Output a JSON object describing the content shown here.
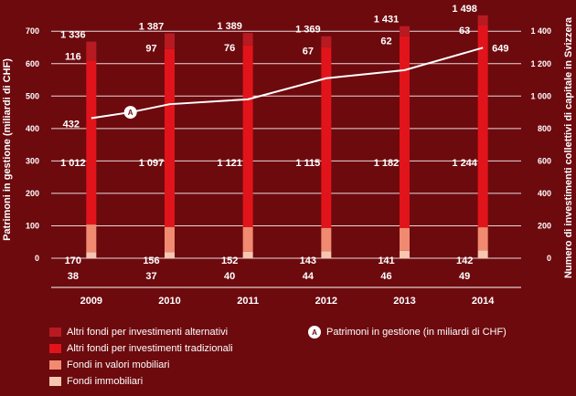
{
  "chart_data": {
    "type": "bar",
    "stacked": true,
    "categories": [
      "2009",
      "2010",
      "2011",
      "2012",
      "2013",
      "2014"
    ],
    "series": [
      {
        "name": "Fondi immobiliari",
        "key": "fondi_immobiliari",
        "color": "#f7c6b0",
        "values": [
          38,
          37,
          40,
          44,
          46,
          49
        ]
      },
      {
        "name": "Fondi in valori mobiliari",
        "key": "fondi_valori_mobiliari",
        "color": "#f08a70",
        "values": [
          170,
          156,
          152,
          143,
          141,
          142
        ]
      },
      {
        "name": "Altri fondi per investimenti tradizionali",
        "key": "altri_tradizionali",
        "color": "#e2141b",
        "values": [
          1012,
          1097,
          1121,
          1115,
          1182,
          1244
        ]
      },
      {
        "name": "Altri fondi per investimenti alternativi",
        "key": "altri_alternativi",
        "color": "#b81a22",
        "values": [
          116,
          97,
          76,
          67,
          62,
          63
        ]
      }
    ],
    "totals": [
      1336,
      1387,
      1389,
      1369,
      1431,
      1498
    ],
    "total_labels": [
      "1 336",
      "1 387",
      "1 389",
      "1 369",
      "1 431",
      "1 498"
    ],
    "segment_labels": {
      "fondi_immobiliari": [
        "38",
        "37",
        "40",
        "44",
        "46",
        "49"
      ],
      "fondi_valori_mobiliari": [
        "170",
        "156",
        "152",
        "143",
        "141",
        "142"
      ],
      "altri_tradizionali": [
        "1 012",
        "1 097",
        "1 121",
        "1 115",
        "1 182",
        "1 244"
      ],
      "altri_alternativi": [
        "116",
        "97",
        "76",
        "67",
        "62",
        "63"
      ]
    },
    "line_series": {
      "name": "Patrimoni in gestione (in miliardi di CHF)",
      "marker_label": "A",
      "color": "#ffffff",
      "axis": "left",
      "points": [
        {
          "x": "2009",
          "y": 432
        },
        {
          "x": "2009.5",
          "y": 450
        },
        {
          "x": "2010",
          "y": 475
        },
        {
          "x": "2011",
          "y": 490
        },
        {
          "x": "2012",
          "y": 555
        },
        {
          "x": "2013",
          "y": 580
        },
        {
          "x": "2014",
          "y": 649
        }
      ],
      "labels": [
        {
          "x": "2009",
          "text": "432"
        },
        {
          "x": "2014",
          "text": "649"
        }
      ]
    },
    "left_axis": {
      "label": "Patrimoni in gestione (miliardi di CHF)",
      "ticks": [
        "0",
        "100",
        "200",
        "300",
        "400",
        "500",
        "600",
        "700"
      ],
      "ylim": [
        -90,
        740
      ]
    },
    "right_axis": {
      "label": "Numero di investimenti collettivi di capitale in Svizzera",
      "ticks": [
        "0",
        "200",
        "400",
        "600",
        "800",
        "1 000",
        "1 200",
        "1 400"
      ],
      "ylim": [
        -180,
        1480
      ]
    },
    "grid": true,
    "legend_position": "bottom"
  },
  "colors": {
    "background": "#6d0a0e",
    "grid": "#ffffff",
    "text": "#ffffff"
  },
  "legend": {
    "items": [
      {
        "label": "Altri fondi per investimenti alternativi",
        "color": "#b81a22"
      },
      {
        "label": "Altri fondi per investimenti tradizionali",
        "color": "#e2141b"
      },
      {
        "label": "Fondi in valori mobiliari",
        "color": "#f08a70"
      },
      {
        "label": "Fondi immobiliari",
        "color": "#f7c6b0"
      }
    ],
    "line_item": {
      "marker": "A",
      "label": "Patrimoni in gestione (in miliardi di CHF)",
      "icon": "circle-marker-icon"
    }
  }
}
